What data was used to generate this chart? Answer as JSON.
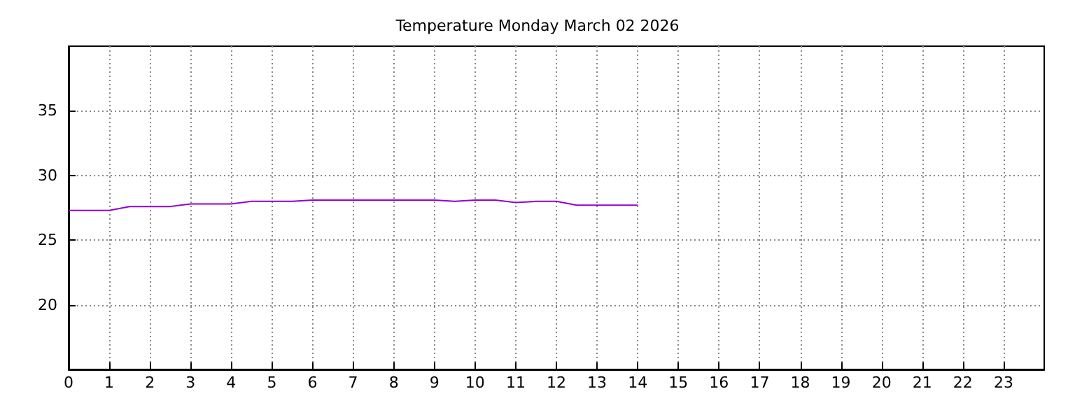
{
  "chart_data": {
    "type": "line",
    "title": "Temperature Monday March 02 2026",
    "x": [
      0,
      0.5,
      1,
      1.5,
      2,
      2.5,
      3,
      3.5,
      4,
      4.5,
      5,
      5.5,
      6,
      6.5,
      7,
      7.5,
      8,
      8.5,
      9,
      9.5,
      10,
      10.5,
      11,
      11.5,
      12,
      12.5,
      13,
      13.5,
      14
    ],
    "series": [
      {
        "color": "#9400d3",
        "values": [
          27.3,
          27.3,
          27.3,
          27.6,
          27.6,
          27.6,
          27.8,
          27.8,
          27.8,
          28.0,
          28.0,
          28.0,
          28.1,
          28.1,
          28.1,
          28.1,
          28.1,
          28.1,
          28.1,
          28.0,
          28.1,
          28.1,
          27.9,
          28.0,
          28.0,
          27.7,
          27.7,
          27.7,
          27.7
        ]
      }
    ],
    "xlim": [
      0,
      24
    ],
    "xticks": [
      0,
      1,
      2,
      3,
      4,
      5,
      6,
      7,
      8,
      9,
      10,
      11,
      12,
      13,
      14,
      15,
      16,
      17,
      18,
      19,
      20,
      21,
      22,
      23
    ],
    "ylim": [
      15,
      40
    ],
    "yticks": [
      20,
      25,
      30,
      35
    ],
    "grid": true,
    "marker": "none",
    "line_style": "solid"
  }
}
